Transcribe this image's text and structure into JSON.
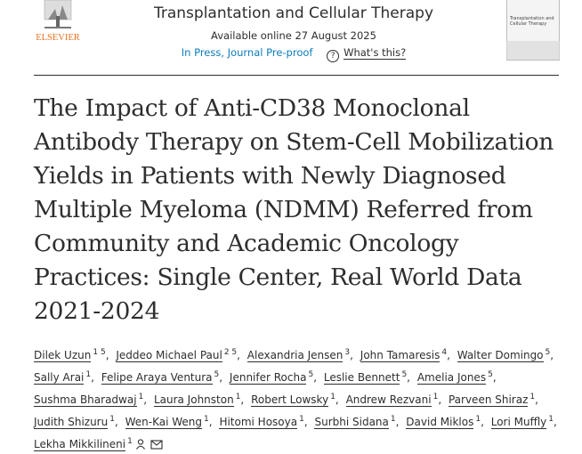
{
  "header": {
    "publisher": "ELSEVIER",
    "journal": "Transplantation and Cellular Therapy",
    "available": "Available online 27 August 2025",
    "status": "In Press, Journal Pre-proof",
    "help": "What's this?",
    "cover_title": "Transplantation and Cellular Therapy"
  },
  "title": "The Impact of Anti-CD38 Monoclonal Antibody Therapy on Stem-Cell Mobilization Yields in Patients with Newly Diagnosed Multiple Myeloma (NDMM) Referred from Community and Academic Oncology Practices: Single Center, Real World Data 2021-2024",
  "authors": [
    {
      "name": "Dilek Uzun",
      "aff": "1 5"
    },
    {
      "name": "Jeddeo Michael Paul",
      "aff": "2 5"
    },
    {
      "name": "Alexandria Jensen",
      "aff": "3"
    },
    {
      "name": "John Tamaresis",
      "aff": "4"
    },
    {
      "name": "Walter Domingo",
      "aff": "5"
    },
    {
      "name": "Sally Arai",
      "aff": "1"
    },
    {
      "name": "Felipe Araya Ventura",
      "aff": "5"
    },
    {
      "name": "Jennifer Rocha",
      "aff": "5"
    },
    {
      "name": "Leslie Bennett",
      "aff": "5"
    },
    {
      "name": "Amelia Jones",
      "aff": "5"
    },
    {
      "name": "Sushma Bharadwaj",
      "aff": "1"
    },
    {
      "name": "Laura Johnston",
      "aff": "1"
    },
    {
      "name": "Robert Lowsky",
      "aff": "1"
    },
    {
      "name": "Andrew Rezvani",
      "aff": "1"
    },
    {
      "name": "Parveen Shiraz",
      "aff": "1"
    },
    {
      "name": "Judith Shizuru",
      "aff": "1"
    },
    {
      "name": "Wen-Kai Weng",
      "aff": "1"
    },
    {
      "name": "Hitomi Hosoya",
      "aff": "1"
    },
    {
      "name": "Surbhi Sidana",
      "aff": "1"
    },
    {
      "name": "David Miklos",
      "aff": "1"
    },
    {
      "name": "Lori Muffly",
      "aff": "1"
    },
    {
      "name": "Lekha Mikkilineni",
      "aff": "1"
    }
  ]
}
